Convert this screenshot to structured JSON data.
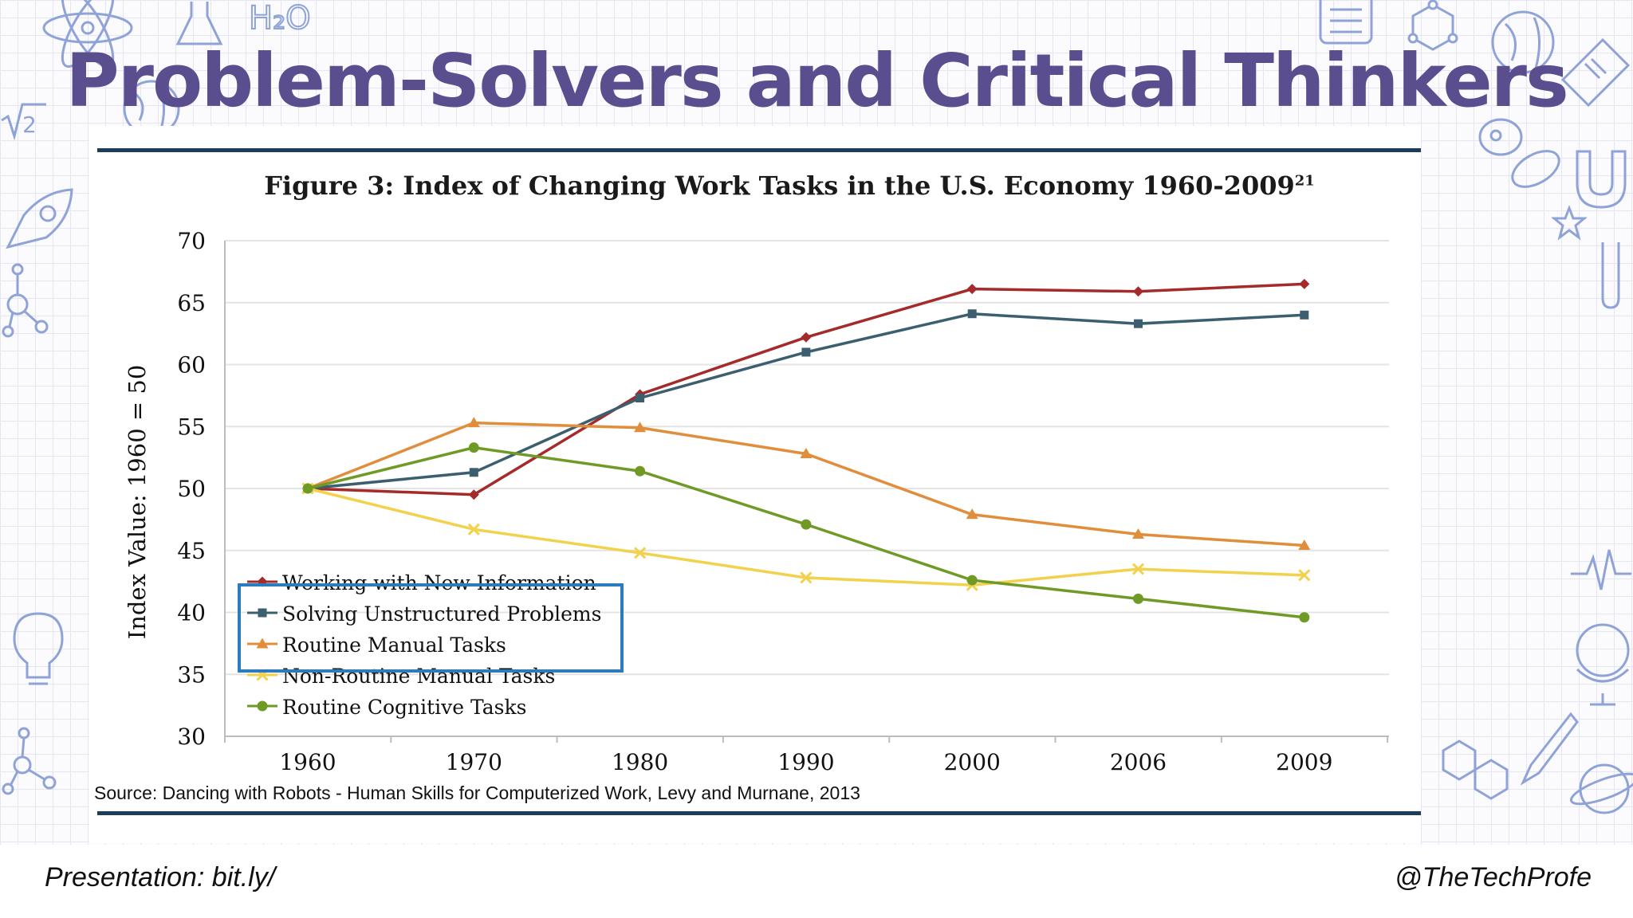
{
  "slide": {
    "title": "Problem-Solvers and Critical Thinkers",
    "footer_left": "Presentation: bit.ly/",
    "footer_right": "@TheTechProfe",
    "source": "Source: Dancing with Robots -  Human Skills for Computerized Work, Levy and Murnane, 2013",
    "colors": {
      "title": "#5b4e8f",
      "rule": "#1f3d5a",
      "highlight_box": "#2b7bbf",
      "doodle": "#8fa3d6"
    }
  },
  "chart_data": {
    "type": "line",
    "title": "Figure 3: Index of Changing Work Tasks in the U.S. Economy 1960-2009",
    "title_superscript": "21",
    "xlabel": "",
    "ylabel": "Index Value: 1960 = 50",
    "categories": [
      "1960",
      "1970",
      "1980",
      "1990",
      "2000",
      "2006",
      "2009"
    ],
    "y_ticks": [
      "70",
      "65",
      "60",
      "55",
      "50",
      "45",
      "40",
      "35",
      "30"
    ],
    "ylim": [
      30,
      70
    ],
    "grid": true,
    "legend_position": "bottom-left",
    "series": [
      {
        "name": "Working with New Information",
        "color": "#a52a2a",
        "marker": "diamond",
        "values": [
          50.0,
          49.5,
          57.6,
          62.2,
          66.1,
          65.9,
          66.5
        ]
      },
      {
        "name": "Solving Unstructured Problems",
        "color": "#3c5f70",
        "marker": "square",
        "values": [
          50.0,
          51.3,
          57.3,
          61.0,
          64.1,
          63.3,
          64.0
        ]
      },
      {
        "name": "Routine Manual Tasks",
        "color": "#e08e3c",
        "marker": "triangle",
        "values": [
          50.0,
          55.3,
          54.9,
          52.8,
          47.9,
          46.3,
          45.4
        ]
      },
      {
        "name": "Non-Routine Manual Tasks",
        "color": "#f2d24d",
        "marker": "x",
        "values": [
          50.0,
          46.7,
          44.8,
          42.8,
          42.2,
          43.5,
          43.0
        ]
      },
      {
        "name": "Routine Cognitive Tasks",
        "color": "#6f9a26",
        "marker": "circle",
        "values": [
          50.0,
          53.3,
          51.4,
          47.1,
          42.6,
          41.1,
          39.6
        ]
      }
    ]
  }
}
